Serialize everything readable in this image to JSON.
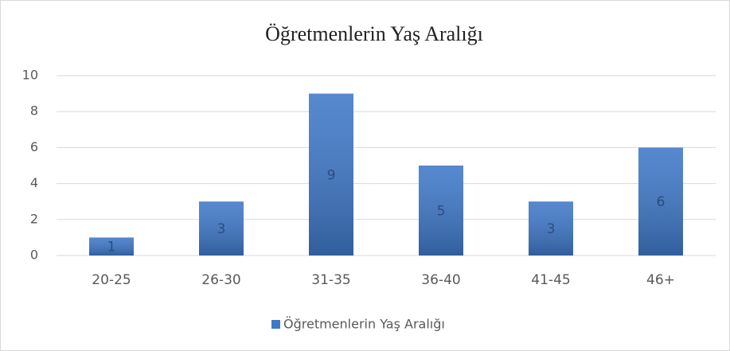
{
  "chart_data": {
    "type": "bar",
    "title": "Öğretmenlerin Yaş Aralığı",
    "categories": [
      "20-25",
      "26-30",
      "31-35",
      "36-40",
      "41-45",
      "46+"
    ],
    "series": [
      {
        "name": "Öğretmenlerin Yaş Aralığı",
        "color": "#3f78c8",
        "values": [
          1,
          3,
          9,
          5,
          3,
          6
        ]
      }
    ],
    "ylim": [
      0,
      10
    ],
    "yticks": [
      0,
      2,
      4,
      6,
      8,
      10
    ],
    "grid": true,
    "data_labels": true,
    "legend": "bottom"
  }
}
